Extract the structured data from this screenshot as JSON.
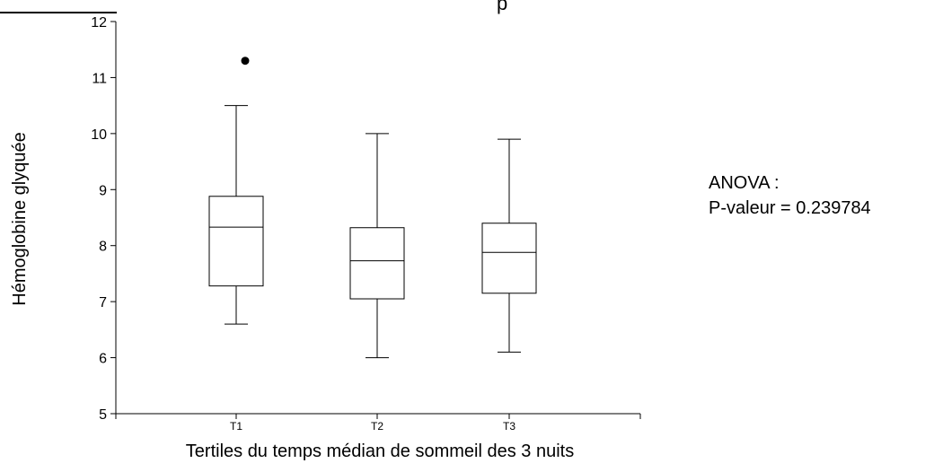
{
  "header_fragment": "p",
  "annotation": {
    "line1": "ANOVA :",
    "line2": "P-valeur = 0.239784"
  },
  "chart_data": {
    "type": "boxplot",
    "title": "",
    "xlabel": "Tertiles du temps médian de sommeil des 3 nuits",
    "ylabel": "Hémoglobine glyquée",
    "ylim": [
      5,
      12
    ],
    "yticks": [
      5,
      6,
      7,
      8,
      9,
      10,
      11,
      12
    ],
    "grid": false,
    "categories": [
      "T1",
      "T2",
      "T3"
    ],
    "boxes": [
      {
        "category": "T1",
        "whisker_low": 6.6,
        "q1": 7.28,
        "median": 8.33,
        "q3": 8.88,
        "whisker_high": 10.5,
        "outliers": [
          11.3
        ]
      },
      {
        "category": "T2",
        "whisker_low": 6.0,
        "q1": 7.05,
        "median": 7.73,
        "q3": 8.32,
        "whisker_high": 10.0,
        "outliers": []
      },
      {
        "category": "T3",
        "whisker_low": 6.1,
        "q1": 7.15,
        "median": 7.88,
        "q3": 8.4,
        "whisker_high": 9.9,
        "outliers": []
      }
    ],
    "colors": {
      "box_fill": "#ffffff",
      "stroke": "#000000",
      "outlier": "#000000",
      "header_rule": "#000000"
    }
  }
}
